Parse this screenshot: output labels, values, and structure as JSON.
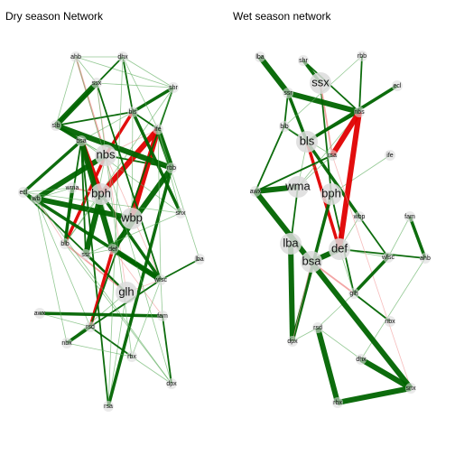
{
  "titles": {
    "dry": "Dry season Network",
    "wet": "Wet season network"
  },
  "colors": {
    "positive": "#006400",
    "positive_light": "#66b266",
    "negative": "#e00000",
    "negative_light": "#f2a0a0",
    "node": "#dcdcdc"
  },
  "dry_nodes": [
    {
      "id": "nbs",
      "label": "nbs",
      "big": true
    },
    {
      "id": "bph",
      "label": "bph",
      "big": true
    },
    {
      "id": "wbp",
      "label": "wbp",
      "big": true
    },
    {
      "id": "glh",
      "label": "glh",
      "big": true
    },
    {
      "id": "bsa",
      "label": "bsa",
      "big": false
    },
    {
      "id": "wma",
      "label": "wma",
      "big": false
    },
    {
      "id": "blb",
      "label": "blb",
      "big": false
    },
    {
      "id": "def",
      "label": "def",
      "big": false
    },
    {
      "id": "rsd",
      "label": "rsd",
      "big": false
    },
    {
      "id": "awx",
      "label": "awx",
      "big": false
    },
    {
      "id": "bls",
      "label": "bls",
      "big": false
    },
    {
      "id": "rbb",
      "label": "rbb",
      "big": false
    },
    {
      "id": "snx",
      "label": "snx",
      "big": false
    },
    {
      "id": "shr",
      "label": "shr",
      "big": false
    },
    {
      "id": "rbx",
      "label": "rbx",
      "big": false
    },
    {
      "id": "nbx",
      "label": "nbx",
      "big": false
    },
    {
      "id": "dhx",
      "label": "dhx",
      "big": false
    },
    {
      "id": "ahb",
      "label": "ahb",
      "big": false
    },
    {
      "id": "lba",
      "label": "lba",
      "big": false
    },
    {
      "id": "fam",
      "label": "fam",
      "big": false
    },
    {
      "id": "ife",
      "label": "ife",
      "big": false
    },
    {
      "id": "wfsc",
      "label": "wfsc",
      "big": false
    },
    {
      "id": "ssx",
      "label": "ssx",
      "big": false
    },
    {
      "id": "ssr",
      "label": "ssr",
      "big": false
    },
    {
      "id": "dpx",
      "label": "dpx",
      "big": false
    },
    {
      "id": "ecl",
      "label": "ecl",
      "big": false
    },
    {
      "id": "wb",
      "label": "wb",
      "big": false
    },
    {
      "id": "rsa",
      "label": "rsa",
      "big": false
    },
    {
      "id": "sib",
      "label": "sib",
      "big": false
    }
  ],
  "wet_nodes": [
    {
      "id": "ssx",
      "label": "ssx",
      "big": true
    },
    {
      "id": "bls",
      "label": "bls",
      "big": true
    },
    {
      "id": "wma",
      "label": "wma",
      "big": true
    },
    {
      "id": "bph",
      "label": "bph",
      "big": true
    },
    {
      "id": "lba",
      "label": "lba",
      "big": true
    },
    {
      "id": "def",
      "label": "def",
      "big": true
    },
    {
      "id": "bsa",
      "label": "bsa",
      "big": true
    },
    {
      "id": "rsa",
      "label": "rsa",
      "big": false
    },
    {
      "id": "shr",
      "label": "shr",
      "big": false
    },
    {
      "id": "nbs",
      "label": "nbs",
      "big": false
    },
    {
      "id": "blb",
      "label": "blb",
      "big": false
    },
    {
      "id": "wbp",
      "label": "wbp",
      "big": false
    },
    {
      "id": "rsd",
      "label": "rsd",
      "big": false
    },
    {
      "id": "dpx",
      "label": "dpx",
      "big": false
    },
    {
      "id": "nbx",
      "label": "nbx",
      "big": false
    },
    {
      "id": "rbx",
      "label": "rbx",
      "big": false
    },
    {
      "id": "glh",
      "label": "glh",
      "big": false
    },
    {
      "id": "fam",
      "label": "fam",
      "big": false
    },
    {
      "id": "ahb",
      "label": "ahb",
      "big": false
    },
    {
      "id": "awx",
      "label": "awx",
      "big": false
    },
    {
      "id": "wfsc",
      "label": "wfsc",
      "big": false
    },
    {
      "id": "ife",
      "label": "ife",
      "big": false
    },
    {
      "id": "lba2",
      "label": "lba",
      "big": false
    },
    {
      "id": "rbb",
      "label": "rbb",
      "big": false
    },
    {
      "id": "ssr",
      "label": "ssr",
      "big": false
    },
    {
      "id": "ecl",
      "label": "ecl",
      "big": false
    },
    {
      "id": "snx",
      "label": "snx",
      "big": false
    },
    {
      "id": "dhx",
      "label": "dhx",
      "big": false
    }
  ]
}
